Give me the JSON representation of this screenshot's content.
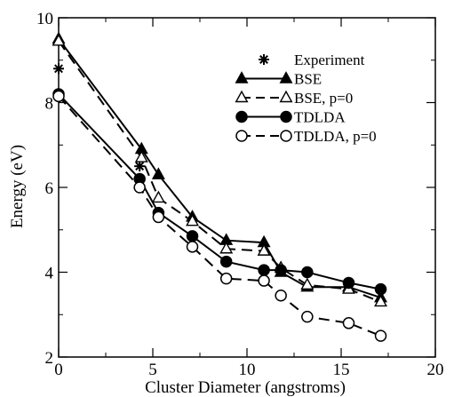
{
  "chart_data": {
    "type": "line",
    "title": "",
    "xlabel": "Cluster Diameter (angstroms)",
    "ylabel": "Energy (eV)",
    "xlim": [
      0,
      20
    ],
    "ylim": [
      2,
      10
    ],
    "x_ticks": [
      0,
      5,
      10,
      15,
      20
    ],
    "y_ticks": [
      2,
      4,
      6,
      8,
      10
    ],
    "x_tick_labels": [
      "0",
      "5",
      "10",
      "15",
      "20"
    ],
    "y_tick_labels": [
      "2",
      "4",
      "6",
      "8",
      "10"
    ],
    "grid": false,
    "legend_position": "top-right",
    "series": [
      {
        "name": "Experiment",
        "style": "markers-only",
        "marker": "asterisk",
        "x": [
          0,
          4.3
        ],
        "y": [
          8.8,
          6.5
        ]
      },
      {
        "name": "BSE",
        "style": "solid",
        "marker": "filled-triangle",
        "x": [
          0,
          4.4,
          5.3,
          7.1,
          8.9,
          10.9,
          11.8,
          13.2,
          15.4,
          17.1
        ],
        "y": [
          9.5,
          6.9,
          6.3,
          5.3,
          4.75,
          4.7,
          4.0,
          3.65,
          3.65,
          3.4
        ]
      },
      {
        "name": "BSE, p=0",
        "style": "dashed",
        "marker": "open-triangle",
        "x": [
          0,
          4.4,
          5.3,
          7.1,
          8.9,
          10.9,
          11.8,
          13.2,
          15.4,
          17.1
        ],
        "y": [
          9.45,
          6.7,
          5.75,
          5.2,
          4.55,
          4.5,
          4.1,
          3.7,
          3.6,
          3.3
        ]
      },
      {
        "name": "TDLDA",
        "style": "solid",
        "marker": "filled-circle",
        "x": [
          0,
          4.3,
          5.3,
          7.1,
          8.9,
          10.9,
          11.8,
          13.2,
          15.4,
          17.1
        ],
        "y": [
          8.2,
          6.2,
          5.4,
          4.85,
          4.25,
          4.05,
          4.05,
          4.0,
          3.75,
          3.6
        ]
      },
      {
        "name": "TDLDA, p=0",
        "style": "dashed",
        "marker": "open-circle",
        "x": [
          0,
          4.3,
          5.3,
          7.1,
          8.9,
          10.9,
          11.8,
          13.2,
          15.4,
          17.1
        ],
        "y": [
          8.15,
          6.0,
          5.3,
          4.6,
          3.85,
          3.8,
          3.45,
          2.95,
          2.8,
          2.5
        ]
      }
    ]
  }
}
